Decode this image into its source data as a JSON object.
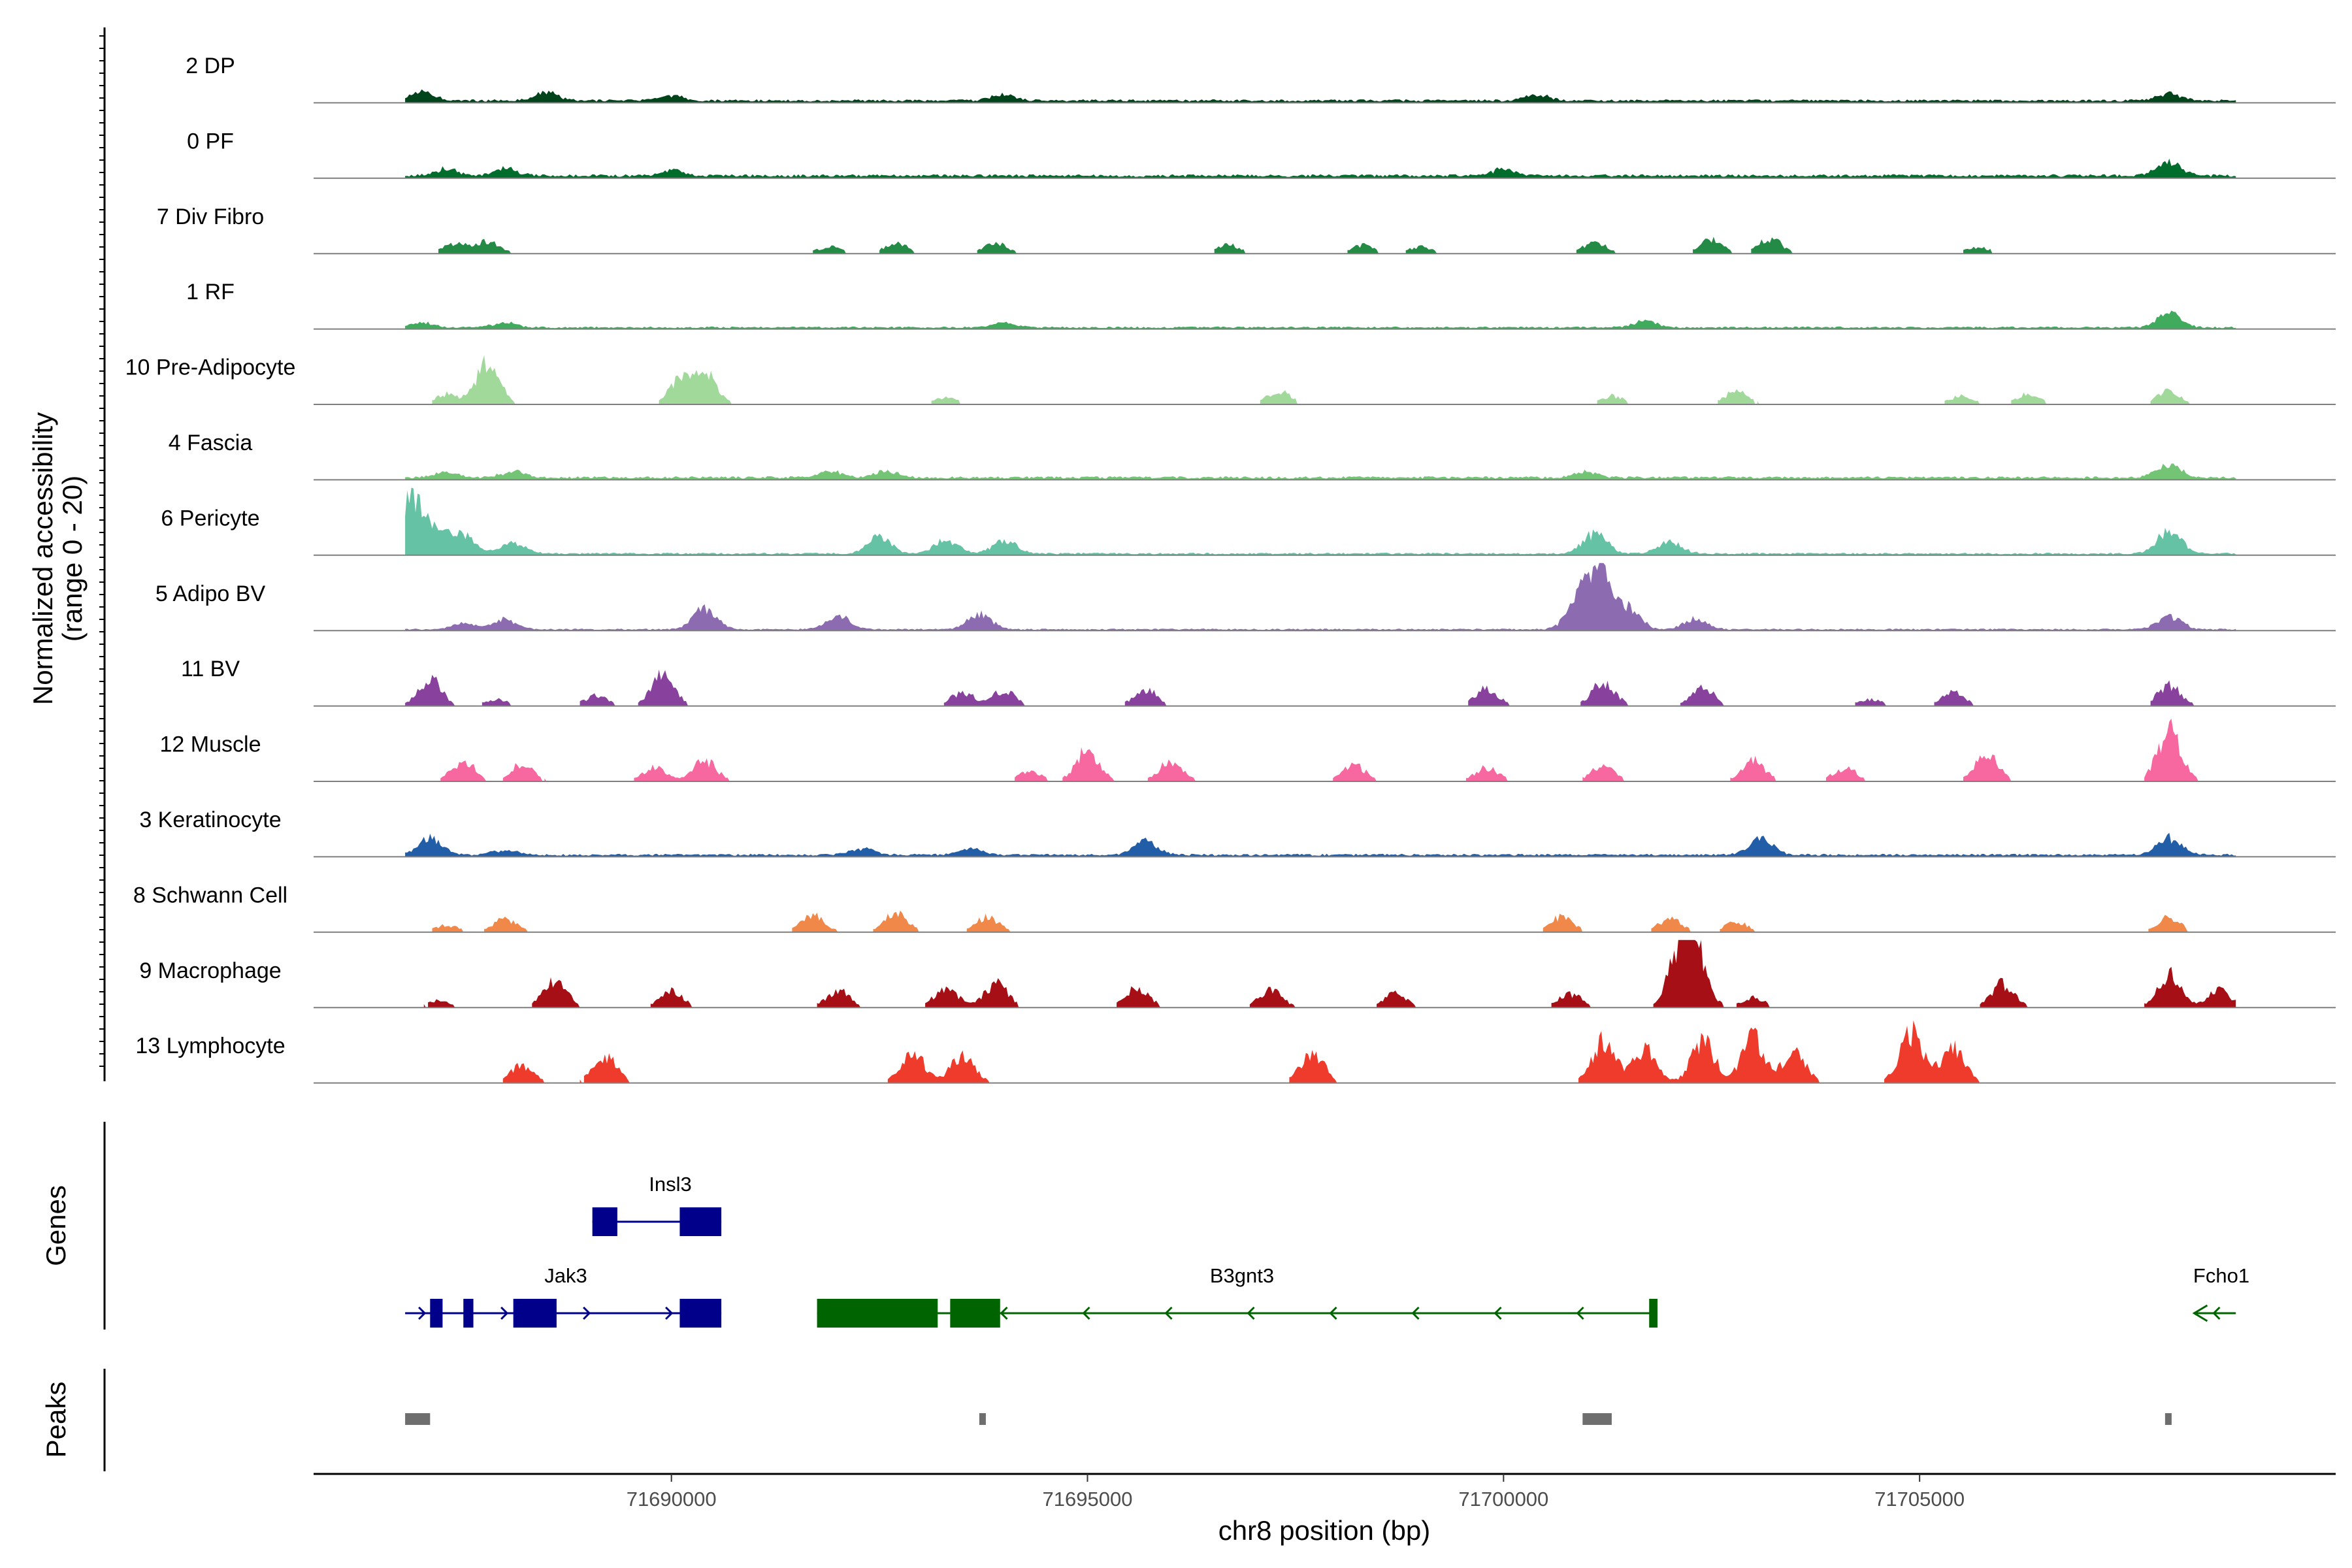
{
  "chart_data": {
    "type": "area",
    "title": "",
    "chromosome": "chr8",
    "xlabel": "chr8 position (bp)",
    "ylabel": "Normalized accessibility",
    "ylabel_sub": "(range 0 - 20)",
    "xlim": [
      71685700,
      71710000
    ],
    "ylim": [
      0,
      20
    ],
    "x_ticks": [
      71690000,
      71695000,
      71700000,
      71705000
    ],
    "x_tick_labels": [
      "71690000",
      "71695000",
      "71700000",
      "71705000"
    ],
    "data_range": [
      71686800,
      71708800
    ],
    "tracks": [
      {
        "name": "2 DP",
        "color": "#00441b",
        "style": "continuous",
        "base": 0.7,
        "peaks": [
          [
            71687000,
            2.5
          ],
          [
            71688500,
            2.5
          ],
          [
            71694000,
            1.8
          ],
          [
            71700400,
            1.8
          ],
          [
            71708000,
            2.2
          ],
          [
            71690000,
            1.5
          ]
        ]
      },
      {
        "name": "0 PF",
        "color": "#006d2c",
        "style": "continuous",
        "base": 0.8,
        "peaks": [
          [
            71687300,
            2.0
          ],
          [
            71688000,
            2.2
          ],
          [
            71690000,
            1.5
          ],
          [
            71700000,
            2.0
          ],
          [
            71708000,
            4.0
          ]
        ]
      },
      {
        "name": "7 Div Fibro",
        "color": "#238b45",
        "style": "sparse",
        "base": 0,
        "peaks": [
          [
            71687400,
            3.0
          ],
          [
            71687800,
            3.5
          ],
          [
            71691900,
            2.0
          ],
          [
            71692700,
            3.0
          ],
          [
            71693900,
            3.0
          ],
          [
            71696700,
            2.5
          ],
          [
            71698300,
            2.5
          ],
          [
            71699000,
            2.0
          ],
          [
            71701100,
            3.5
          ],
          [
            71702500,
            4.0
          ],
          [
            71703200,
            4.5
          ],
          [
            71705700,
            2.0
          ]
        ]
      },
      {
        "name": "1 RF",
        "color": "#41ab5d",
        "style": "continuous",
        "base": 0.5,
        "peaks": [
          [
            71687000,
            1.5
          ],
          [
            71688000,
            1.5
          ],
          [
            71694000,
            1.2
          ],
          [
            71701700,
            2.0
          ],
          [
            71708000,
            4.0
          ]
        ]
      },
      {
        "name": "10 Pre-Adipocyte",
        "color": "#a1d99b",
        "style": "sparse",
        "base": 0,
        "peaks": [
          [
            71687300,
            3.0
          ],
          [
            71687800,
            12.0
          ],
          [
            71690100,
            7.0
          ],
          [
            71690400,
            9.0
          ],
          [
            71693300,
            2.0
          ],
          [
            71697300,
            4.0
          ],
          [
            71701300,
            2.5
          ],
          [
            71702800,
            4.0
          ],
          [
            71705500,
            2.5
          ],
          [
            71706300,
            3.0
          ],
          [
            71708000,
            4.0
          ]
        ]
      },
      {
        "name": "4 Fascia",
        "color": "#74c476",
        "style": "continuous",
        "base": 0.7,
        "peaks": [
          [
            71687300,
            1.5
          ],
          [
            71688100,
            1.8
          ],
          [
            71691900,
            2.0
          ],
          [
            71692600,
            2.0
          ],
          [
            71701000,
            1.8
          ],
          [
            71708000,
            4.0
          ]
        ]
      },
      {
        "name": "6 Pericyte",
        "color": "#66c2a4",
        "style": "continuous",
        "base": 0.5,
        "peaks": [
          [
            71686880,
            16.0
          ],
          [
            71687200,
            6.0
          ],
          [
            71687500,
            5.0
          ],
          [
            71688100,
            3.0
          ],
          [
            71692500,
            5.0
          ],
          [
            71693300,
            4.0
          ],
          [
            71694000,
            4.0
          ],
          [
            71701100,
            6.0
          ],
          [
            71702000,
            3.5
          ],
          [
            71708000,
            7.0
          ]
        ]
      },
      {
        "name": "5 Adipo BV",
        "color": "#8c6bb1",
        "style": "continuous",
        "base": 0.4,
        "peaks": [
          [
            71687500,
            2.0
          ],
          [
            71688000,
            3.0
          ],
          [
            71690400,
            6.0
          ],
          [
            71692000,
            4.0
          ],
          [
            71693700,
            4.5
          ],
          [
            71700900,
            8.0
          ],
          [
            71701150,
            17.0
          ],
          [
            71701500,
            6.0
          ],
          [
            71702300,
            3.0
          ],
          [
            71708000,
            4.0
          ]
        ]
      },
      {
        "name": "11 BV",
        "color": "#88419d",
        "style": "sparse",
        "base": 0,
        "peaks": [
          [
            71687100,
            8.0
          ],
          [
            71687900,
            2.0
          ],
          [
            71689100,
            3.0
          ],
          [
            71689900,
            9.0
          ],
          [
            71693500,
            4.0
          ],
          [
            71694000,
            4.5
          ],
          [
            71695700,
            5.0
          ],
          [
            71699800,
            5.0
          ],
          [
            71701200,
            7.0
          ],
          [
            71702400,
            5.0
          ],
          [
            71704400,
            2.0
          ],
          [
            71705400,
            4.0
          ],
          [
            71708000,
            6.0
          ]
        ]
      },
      {
        "name": "12 Muscle",
        "color": "#f768a1",
        "style": "sparse",
        "base": 0,
        "peaks": [
          [
            71687500,
            6.0
          ],
          [
            71688200,
            5.0
          ],
          [
            71689800,
            4.0
          ],
          [
            71690400,
            6.0
          ],
          [
            71694300,
            3.0
          ],
          [
            71695000,
            9.0
          ],
          [
            71696000,
            6.0
          ],
          [
            71698200,
            5.0
          ],
          [
            71699800,
            4.0
          ],
          [
            71701200,
            5.0
          ],
          [
            71703000,
            6.0
          ],
          [
            71704100,
            4.0
          ],
          [
            71705800,
            8.0
          ],
          [
            71708000,
            15.0
          ]
        ]
      },
      {
        "name": "3 Keratinocyte",
        "color": "#225ea8",
        "style": "continuous",
        "base": 0.6,
        "peaks": [
          [
            71687100,
            5.0
          ],
          [
            71688000,
            1.5
          ],
          [
            71692300,
            2.0
          ],
          [
            71693600,
            1.8
          ],
          [
            71695700,
            4.0
          ],
          [
            71703100,
            5.0
          ],
          [
            71708000,
            5.0
          ]
        ]
      },
      {
        "name": "8 Schwann Cell",
        "color": "#f08849",
        "style": "sparse",
        "base": 0,
        "peaks": [
          [
            71687300,
            2.0
          ],
          [
            71688000,
            4.0
          ],
          [
            71691700,
            5.0
          ],
          [
            71692700,
            5.5
          ],
          [
            71693800,
            4.5
          ],
          [
            71700700,
            4.5
          ],
          [
            71702000,
            4.0
          ],
          [
            71702800,
            3.0
          ],
          [
            71708000,
            4.5
          ]
        ]
      },
      {
        "name": "9 Macrophage",
        "color": "#a50f15",
        "style": "sparse",
        "base": 0,
        "peaks": [
          [
            71687200,
            2.0
          ],
          [
            71688600,
            8.0
          ],
          [
            71690000,
            5.0
          ],
          [
            71692000,
            5.0
          ],
          [
            71693300,
            6.0
          ],
          [
            71693900,
            7.0
          ],
          [
            71695600,
            6.0
          ],
          [
            71697200,
            5.0
          ],
          [
            71698700,
            4.0
          ],
          [
            71700800,
            4.0
          ],
          [
            71702100,
            14.0
          ],
          [
            71702300,
            17.0
          ],
          [
            71703000,
            3.0
          ],
          [
            71706000,
            7.0
          ],
          [
            71708000,
            10.0
          ],
          [
            71708600,
            5.0
          ]
        ]
      },
      {
        "name": "13 Lymphocyte",
        "color": "#ef3b2c",
        "style": "sparse",
        "base": 0,
        "peaks": [
          [
            71688200,
            5.0
          ],
          [
            71689200,
            8.0
          ],
          [
            71692900,
            9.0
          ],
          [
            71693500,
            8.0
          ],
          [
            71697700,
            9.0
          ],
          [
            71701200,
            12.0
          ],
          [
            71701700,
            10.0
          ],
          [
            71702400,
            12.0
          ],
          [
            71703000,
            13.0
          ],
          [
            71703500,
            9.0
          ],
          [
            71704900,
            15.0
          ],
          [
            71705400,
            10.0
          ]
        ]
      }
    ],
    "genes": [
      {
        "name": "Insl3",
        "strand": "+",
        "color": "#00008b",
        "row": 0,
        "start": 71689050,
        "end": 71690600,
        "exons": [
          [
            71689050,
            71689350
          ],
          [
            71690100,
            71690600
          ]
        ]
      },
      {
        "name": "Jak3",
        "strand": "+",
        "color": "#00008b",
        "row": 1,
        "start": 71686800,
        "end": 71690600,
        "exons": [
          [
            71687100,
            71687250
          ],
          [
            71687500,
            71687620
          ],
          [
            71688100,
            71688620
          ],
          [
            71690100,
            71690600
          ]
        ]
      },
      {
        "name": "B3gnt3",
        "strand": "-",
        "color": "#006400",
        "row": 1,
        "start": 71691750,
        "end": 71701850,
        "exons": [
          [
            71691750,
            71693200
          ],
          [
            71693350,
            71693950
          ],
          [
            71701750,
            71701850
          ]
        ]
      },
      {
        "name": "Fcho1",
        "strand": "-",
        "color": "#006400",
        "row": 1,
        "start": 71708300,
        "end": 71708800,
        "exons": []
      }
    ],
    "peaks_track": [
      [
        71686800,
        71687100
      ],
      [
        71693700,
        71693760
      ],
      [
        71700950,
        71701300
      ],
      [
        71707950,
        71708020
      ]
    ],
    "panel_labels": {
      "genes": "Genes",
      "peaks": "Peaks"
    }
  }
}
